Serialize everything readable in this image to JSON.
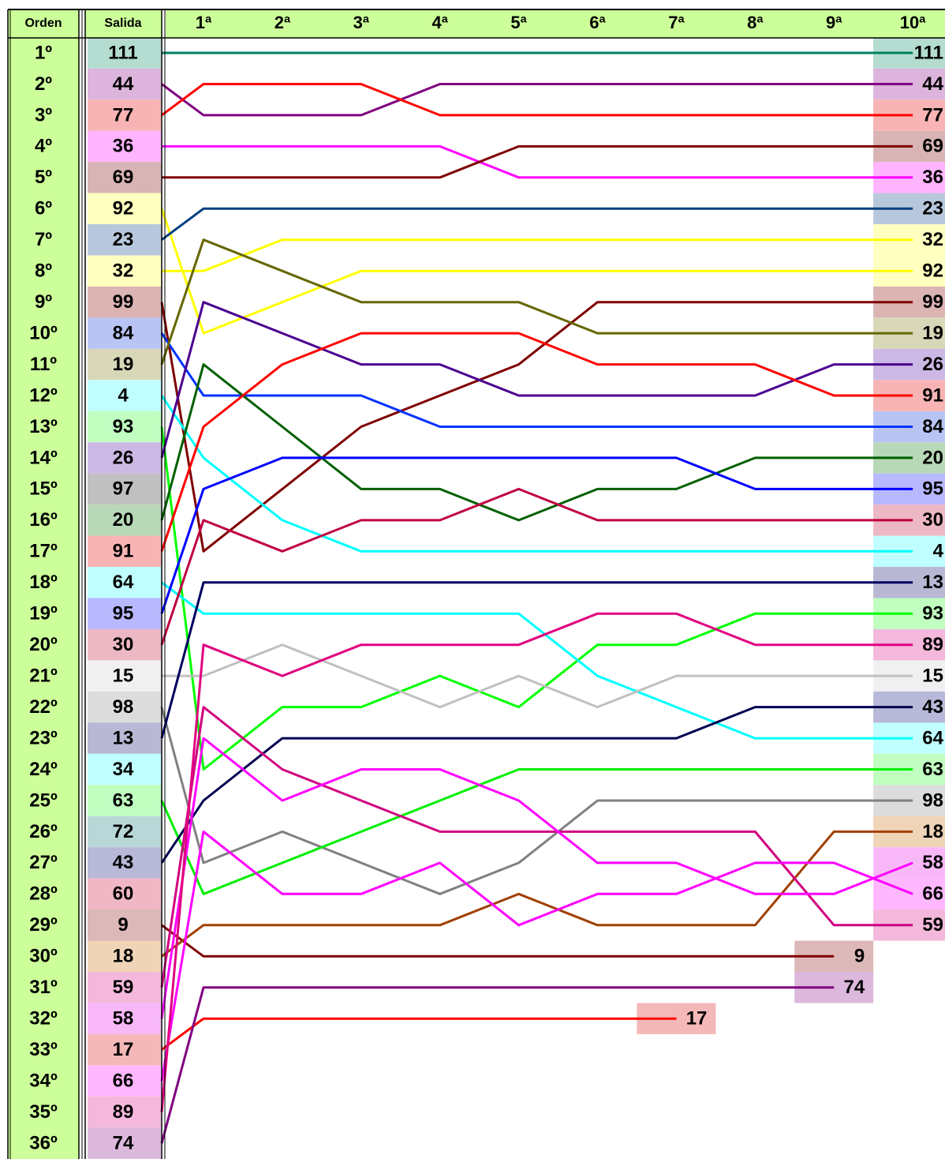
{
  "chart_data": {
    "type": "bump",
    "y_label": "Orden",
    "categories": [
      "Salida",
      "1ª",
      "2ª",
      "3ª",
      "4ª",
      "5ª",
      "6ª",
      "7ª",
      "8ª",
      "9ª",
      "10ª"
    ],
    "ylim": [
      36,
      1
    ],
    "yticks": [
      {
        "value": 1,
        "label": "1º"
      },
      {
        "value": 2,
        "label": "2º"
      },
      {
        "value": 3,
        "label": "3º"
      },
      {
        "value": 4,
        "label": "4º"
      },
      {
        "value": 5,
        "label": "5º"
      },
      {
        "value": 6,
        "label": "6º"
      },
      {
        "value": 7,
        "label": "7º"
      },
      {
        "value": 8,
        "label": "8º"
      },
      {
        "value": 9,
        "label": "9º"
      },
      {
        "value": 10,
        "label": "10º"
      },
      {
        "value": 11,
        "label": "11º"
      },
      {
        "value": 12,
        "label": "12º"
      },
      {
        "value": 13,
        "label": "13º"
      },
      {
        "value": 14,
        "label": "14º"
      },
      {
        "value": 15,
        "label": "15º"
      },
      {
        "value": 16,
        "label": "16º"
      },
      {
        "value": 17,
        "label": "17º"
      },
      {
        "value": 18,
        "label": "18º"
      },
      {
        "value": 19,
        "label": "19º"
      },
      {
        "value": 20,
        "label": "20º"
      },
      {
        "value": 21,
        "label": "21º"
      },
      {
        "value": 22,
        "label": "22º"
      },
      {
        "value": 23,
        "label": "23º"
      },
      {
        "value": 24,
        "label": "24º"
      },
      {
        "value": 25,
        "label": "25º"
      },
      {
        "value": 26,
        "label": "26º"
      },
      {
        "value": 27,
        "label": "27º"
      },
      {
        "value": 28,
        "label": "28º"
      },
      {
        "value": 29,
        "label": "29º"
      },
      {
        "value": 30,
        "label": "30º"
      },
      {
        "value": 31,
        "label": "31º"
      },
      {
        "value": 32,
        "label": "32º"
      },
      {
        "value": 33,
        "label": "33º"
      },
      {
        "value": 34,
        "label": "34º"
      },
      {
        "value": 35,
        "label": "35º"
      },
      {
        "value": 36,
        "label": "36º"
      }
    ],
    "start_order": [
      "111",
      "44",
      "77",
      "36",
      "69",
      "92",
      "23",
      "32",
      "99",
      "84",
      "19",
      "4",
      "93",
      "26",
      "97",
      "20",
      "91",
      "64",
      "95",
      "30",
      "15",
      "98",
      "13",
      "34",
      "63",
      "72",
      "43",
      "60",
      "9",
      "18",
      "59",
      "58",
      "17",
      "66",
      "89",
      "74"
    ],
    "start_colors": [
      "#b4dcd0",
      "#dcb4dc",
      "#f8b4b4",
      "#ffb4ff",
      "#d8b4b4",
      "#ffffc0",
      "#b8c8dc",
      "#ffffc0",
      "#dcb4b4",
      "#b8c4f4",
      "#d8d8b8",
      "#c0ffff",
      "#c0ffc0",
      "#ccb8e4",
      "#c0c0c0",
      "#b8d8b8",
      "#f8b4b4",
      "#c0ffff",
      "#b8b8ff",
      "#ecb8c4",
      "#f0f0f0",
      "#dcdcdc",
      "#b8b8d4",
      "#c0ffff",
      "#c0ffc0",
      "#b8d8d8",
      "#b8b8d8",
      "#f0b8c4",
      "#dcb8b8",
      "#f0d4b8",
      "#f4b8dc",
      "#f8b8f8",
      "#f4b8b8",
      "#ffb8ff",
      "#f4b8dc",
      "#dcb8dc"
    ],
    "series": [
      {
        "name": "111",
        "color": "#008060",
        "values": [
          1,
          1,
          1,
          1,
          1,
          1,
          1,
          1,
          1,
          1,
          1
        ]
      },
      {
        "name": "44",
        "color": "#800080",
        "values": [
          2,
          3,
          3,
          3,
          2,
          2,
          2,
          2,
          2,
          2,
          2
        ]
      },
      {
        "name": "77",
        "color": "#ff0000",
        "values": [
          3,
          2,
          2,
          2,
          3,
          3,
          3,
          3,
          3,
          3,
          3
        ]
      },
      {
        "name": "36",
        "color": "#ff00ff",
        "values": [
          4,
          4,
          4,
          4,
          4,
          5,
          5,
          5,
          5,
          5,
          5
        ]
      },
      {
        "name": "69",
        "color": "#800000",
        "values": [
          5,
          5,
          5,
          5,
          5,
          4,
          4,
          4,
          4,
          4,
          4
        ]
      },
      {
        "name": "92",
        "color": "#ffff00",
        "values": [
          6,
          10,
          9,
          8,
          8,
          8,
          8,
          8,
          8,
          8,
          8
        ]
      },
      {
        "name": "23",
        "color": "#004080",
        "values": [
          7,
          6,
          6,
          6,
          6,
          6,
          6,
          6,
          6,
          6,
          6
        ]
      },
      {
        "name": "32",
        "color": "#ffff00",
        "values": [
          8,
          8,
          7,
          7,
          7,
          7,
          7,
          7,
          7,
          7,
          7
        ]
      },
      {
        "name": "99",
        "color": "#800000",
        "values": [
          9,
          17,
          15,
          13,
          12,
          11,
          9,
          9,
          9,
          9,
          9
        ]
      },
      {
        "name": "84",
        "color": "#0033ff",
        "values": [
          10,
          12,
          12,
          12,
          13,
          13,
          13,
          13,
          13,
          13,
          13
        ]
      },
      {
        "name": "19",
        "color": "#666600",
        "values": [
          11,
          7,
          8,
          9,
          9,
          9,
          10,
          10,
          10,
          10,
          10
        ]
      },
      {
        "name": "4",
        "color": "#00ffff",
        "values": [
          12,
          14,
          16,
          17,
          17,
          17,
          17,
          17,
          17,
          17,
          17
        ]
      },
      {
        "name": "93",
        "color": "#00ff00",
        "values": [
          13,
          24,
          22,
          22,
          21,
          22,
          20,
          20,
          19,
          19,
          19
        ]
      },
      {
        "name": "26",
        "color": "#4b0090",
        "values": [
          14,
          9,
          10,
          11,
          11,
          12,
          12,
          12,
          12,
          11,
          11
        ]
      },
      {
        "name": "20",
        "color": "#006000",
        "values": [
          16,
          11,
          13,
          15,
          15,
          16,
          15,
          15,
          14,
          14,
          14
        ]
      },
      {
        "name": "91",
        "color": "#ff0000",
        "values": [
          17,
          13,
          11,
          10,
          10,
          10,
          11,
          11,
          11,
          12,
          12
        ]
      },
      {
        "name": "64",
        "color": "#00ffff",
        "values": [
          18,
          19,
          19,
          19,
          19,
          19,
          21,
          22,
          23,
          23,
          23
        ]
      },
      {
        "name": "95",
        "color": "#0000ff",
        "values": [
          19,
          15,
          14,
          14,
          14,
          14,
          14,
          14,
          15,
          15,
          15
        ]
      },
      {
        "name": "30",
        "color": "#c00040",
        "values": [
          20,
          16,
          17,
          16,
          16,
          15,
          16,
          16,
          16,
          16,
          16
        ]
      },
      {
        "name": "15",
        "color": "#c0c0c0",
        "values": [
          21,
          21,
          20,
          21,
          22,
          21,
          22,
          21,
          21,
          21,
          21
        ]
      },
      {
        "name": "98",
        "color": "#808080",
        "values": [
          22,
          27,
          26,
          27,
          28,
          27,
          25,
          25,
          25,
          25,
          25
        ]
      },
      {
        "name": "13",
        "color": "#000060",
        "values": [
          23,
          18,
          18,
          18,
          18,
          18,
          18,
          18,
          18,
          18,
          18
        ]
      },
      {
        "name": "63",
        "color": "#00ee00",
        "values": [
          25,
          28,
          27,
          26,
          25,
          24,
          24,
          24,
          24,
          24,
          24
        ]
      },
      {
        "name": "43",
        "color": "#000050",
        "values": [
          27,
          25,
          23,
          23,
          23,
          23,
          23,
          23,
          22,
          22,
          22
        ]
      },
      {
        "name": "9",
        "color": "#800000",
        "values": [
          29,
          30,
          30,
          30,
          30,
          30,
          30,
          30,
          30,
          30,
          null
        ]
      },
      {
        "name": "18",
        "color": "#a04000",
        "values": [
          30,
          29,
          29,
          29,
          29,
          28,
          29,
          29,
          29,
          26,
          26
        ]
      },
      {
        "name": "59",
        "color": "#d00080",
        "values": [
          31,
          22,
          24,
          25,
          26,
          26,
          26,
          26,
          26,
          29,
          29
        ]
      },
      {
        "name": "58",
        "color": "#ff00ff",
        "values": [
          32,
          23,
          25,
          24,
          24,
          25,
          27,
          27,
          28,
          28,
          27
        ]
      },
      {
        "name": "17",
        "color": "#ff0000",
        "values": [
          33,
          32,
          32,
          32,
          32,
          32,
          32,
          32,
          null,
          null,
          null
        ]
      },
      {
        "name": "66",
        "color": "#ff00ff",
        "values": [
          34,
          26,
          28,
          28,
          27,
          29,
          28,
          28,
          27,
          27,
          28
        ]
      },
      {
        "name": "89",
        "color": "#e00080",
        "values": [
          35,
          20,
          21,
          20,
          20,
          20,
          19,
          19,
          20,
          20,
          20
        ]
      },
      {
        "name": "74",
        "color": "#800080",
        "values": [
          36,
          31,
          31,
          31,
          31,
          31,
          31,
          31,
          31,
          31,
          null
        ]
      }
    ]
  }
}
